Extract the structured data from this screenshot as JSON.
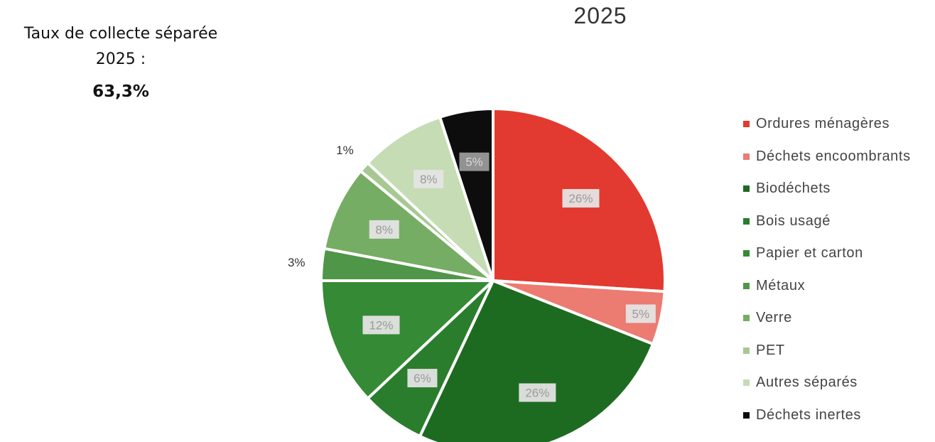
{
  "side_panel": {
    "label_line1": "Taux de collecte séparée",
    "label_line2": "2025 :",
    "value": "63,3%"
  },
  "chart_data": {
    "type": "pie",
    "title": "2025",
    "slices": [
      {
        "name": "Ordures ménagères",
        "value": 26,
        "label": "26%",
        "color": "#e23a30"
      },
      {
        "name": "Déchets encoombrants",
        "value": 5,
        "label": "5%",
        "color": "#ec7b72"
      },
      {
        "name": "Biodéchets",
        "value": 26,
        "label": "26%",
        "color": "#1d6b21"
      },
      {
        "name": "Bois usagé",
        "value": 6,
        "label": "6%",
        "color": "#2a7d2c"
      },
      {
        "name": "Papier et carton",
        "value": 12,
        "label": "12%",
        "color": "#358a35"
      },
      {
        "name": "Métaux",
        "value": 3,
        "label": "3%",
        "color": "#4f9648"
      },
      {
        "name": "Verre",
        "value": 8,
        "label": "8%",
        "color": "#76ad64"
      },
      {
        "name": "PET",
        "value": 1,
        "label": "1%",
        "color": "#a6c994"
      },
      {
        "name": "Autres séparés",
        "value": 8,
        "label": "8%",
        "color": "#c5dcb5"
      },
      {
        "name": "Déchets inertes",
        "value": 5,
        "label": "5%",
        "color": "#0d0d0d"
      }
    ],
    "legend_position": "right"
  }
}
